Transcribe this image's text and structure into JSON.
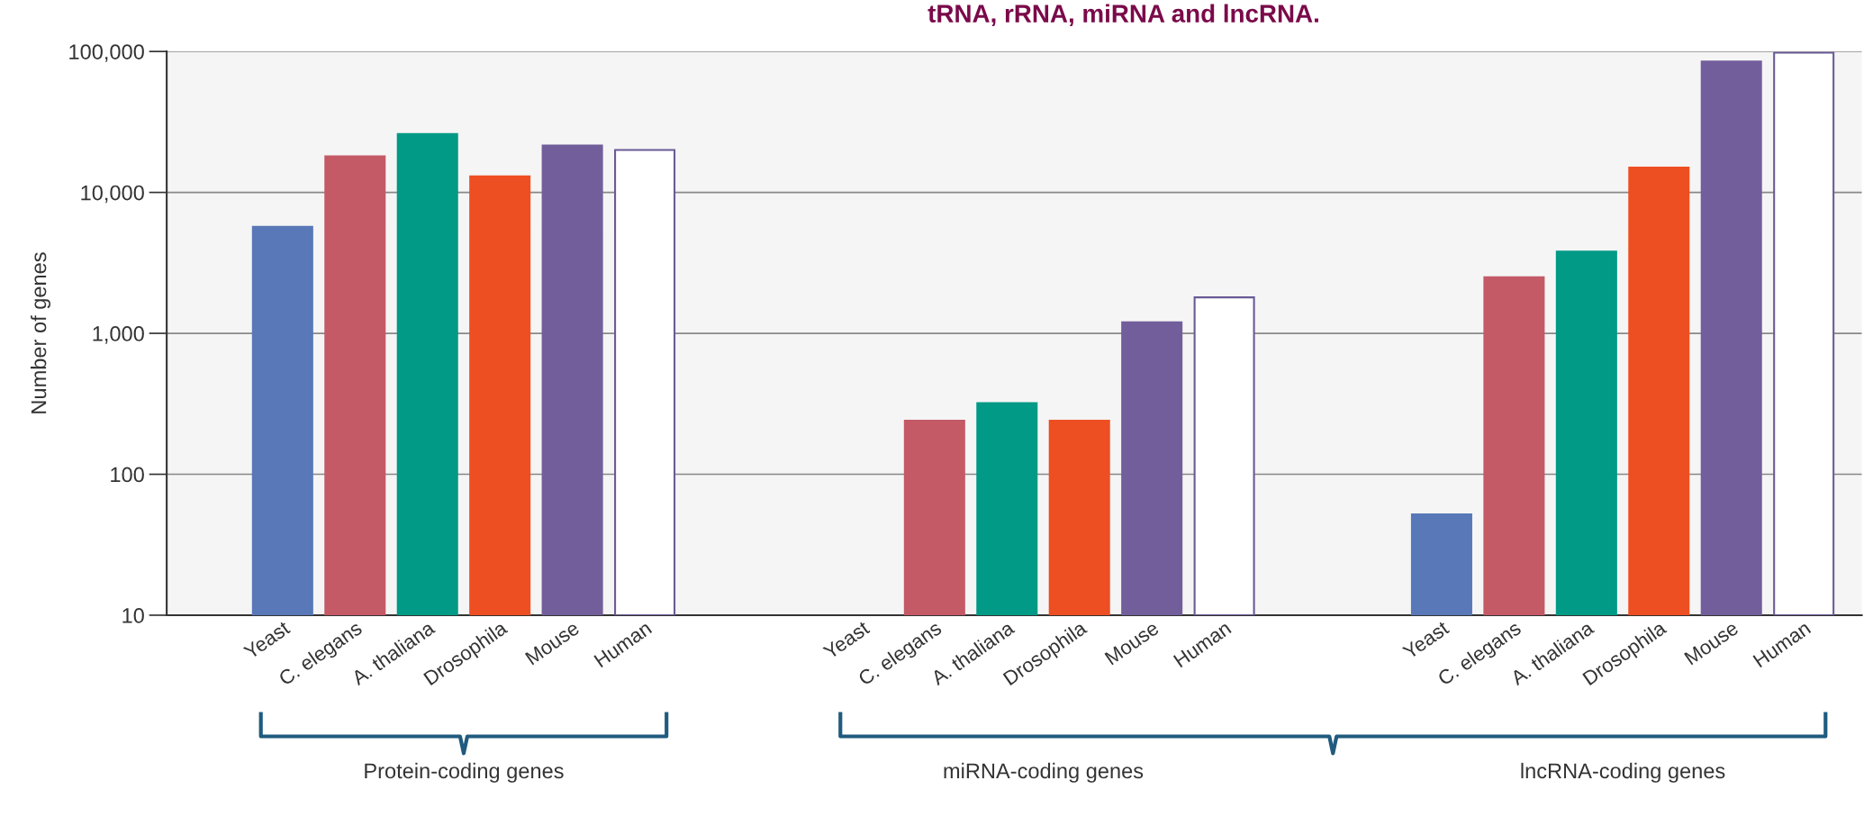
{
  "chart_data": {
    "type": "bar",
    "ylabel": "Number of genes",
    "categories": [
      "Yeast",
      "C. elegans",
      "A. thaliana",
      "Drosophila",
      "Mouse",
      "Human",
      null,
      null,
      "Yeast",
      "C. elegans",
      "A. thaliana",
      "Drosophila",
      "Mouse",
      "Human",
      null,
      null,
      "Yeast",
      "C. elegans",
      "A. thaliana",
      "Drosophila",
      "Mouse",
      "Human"
    ],
    "values": [
      5700,
      18000,
      26000,
      13000,
      21500,
      20000,
      null,
      null,
      null,
      240,
      320,
      240,
      1200,
      1800,
      null,
      null,
      52,
      2500,
      3800,
      15000,
      85000,
      98000
    ],
    "colors": [
      "#5878b8",
      "#c45a66",
      "#009a86",
      "#ee4f22",
      "#735e9c",
      "#ffffff",
      "#ffffff",
      "#ffffff",
      "#5878b8",
      "#c45a66",
      "#009a86",
      "#ee4f22",
      "#735e9c",
      "#ffffff",
      "#ffffff",
      "#ffffff",
      "#5878b8",
      "#c45a66",
      "#009a86",
      "#ee4f22",
      "#735e9c",
      "#ffffff"
    ],
    "log": true,
    "ylim": [
      10,
      100000
    ],
    "yticks": [
      10,
      100,
      {
        "value": 1000,
        "label": "1,000"
      },
      {
        "value": 10000,
        "label": "10,000"
      },
      {
        "value": 100000,
        "label": "100,000"
      }
    ],
    "grid": "y",
    "annotations": [
      "Protein-coding genes",
      "miRNA-coding genes",
      "lncRNA-coding genes",
      "tRNA, rRNA, miRNA and lncRNA."
    ]
  }
}
